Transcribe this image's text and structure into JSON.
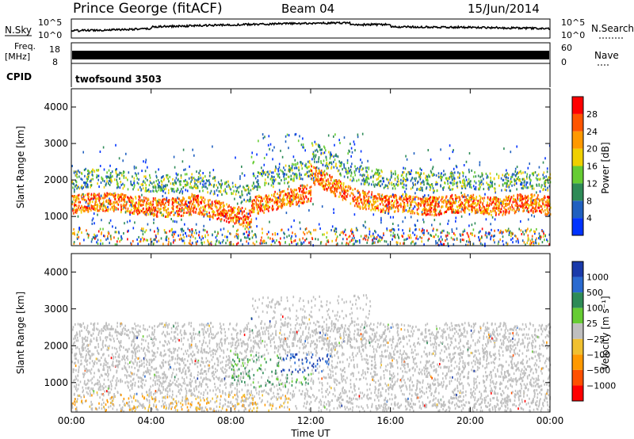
{
  "header": {
    "title": "Prince George (fitACF)",
    "beam": "Beam 04",
    "date": "15/Jun/2014"
  },
  "strips": {
    "nsky_label": "N.Sky",
    "nsearch_label": "N.Search",
    "nsky_ticks": [
      "10^5",
      "10^0"
    ],
    "freq_label": "Freq.",
    "freq_unit": "[MHz]",
    "freq_ticks": [
      "18",
      "8"
    ],
    "nave_label": "Nave",
    "nave_ticks": [
      "60",
      "0"
    ],
    "cpid_label": "CPID",
    "cpid_value": "twofsound 3503"
  },
  "colors": {
    "power": [
      "#0033ff",
      "#2060c0",
      "#2e8b57",
      "#66cc33",
      "#f0d000",
      "#ff9900",
      "#ff5500",
      "#ff0000"
    ],
    "velocity": [
      "#1a3aaa",
      "#2a6ad0",
      "#2e8b57",
      "#66cc33",
      "#bfbfbf",
      "#f0c030",
      "#ff9900",
      "#ff5000",
      "#ff0000"
    ]
  },
  "chart_data": [
    {
      "type": "heatmap",
      "name": "power",
      "ylabel": "Slant Range [km]",
      "xlabel": "",
      "x_tick_labels": [
        "00:00",
        "04:00",
        "08:00",
        "12:00",
        "16:00",
        "20:00",
        "00:00"
      ],
      "y_ticks": [
        1000,
        2000,
        3000,
        4000
      ],
      "ylim": [
        200,
        4500
      ],
      "xlim_hours": [
        0,
        24
      ],
      "colorbar_label": "Power [dB]",
      "colorbar_ticks": [
        "4",
        "8",
        "12",
        "16",
        "20",
        "24",
        "28"
      ],
      "scatter_bands": [
        {
          "t0": 0,
          "t1": 24,
          "range": [
            1000,
            1700
          ],
          "level": "high"
        },
        {
          "t0": 0,
          "t1": 24,
          "range": [
            1700,
            2200
          ],
          "level": "medium"
        },
        {
          "t0": 10,
          "t1": 14,
          "range": [
            2200,
            3200
          ],
          "level": "medium"
        },
        {
          "t0": 0,
          "t1": 24,
          "range": [
            250,
            700
          ],
          "level": "mixed"
        }
      ]
    },
    {
      "type": "heatmap",
      "name": "velocity",
      "ylabel": "Slant Range [km]",
      "xlabel": "Time UT",
      "x_tick_labels": [
        "00:00",
        "04:00",
        "08:00",
        "12:00",
        "16:00",
        "20:00",
        "00:00"
      ],
      "y_ticks": [
        1000,
        2000,
        3000,
        4000
      ],
      "ylim": [
        200,
        4500
      ],
      "xlim_hours": [
        0,
        24
      ],
      "colorbar_label": "Velocity [m s⁻¹]",
      "colorbar_ticks": [
        "1000",
        "500",
        "100",
        "25",
        "−25",
        "−100",
        "−500",
        "−1000"
      ]
    }
  ]
}
